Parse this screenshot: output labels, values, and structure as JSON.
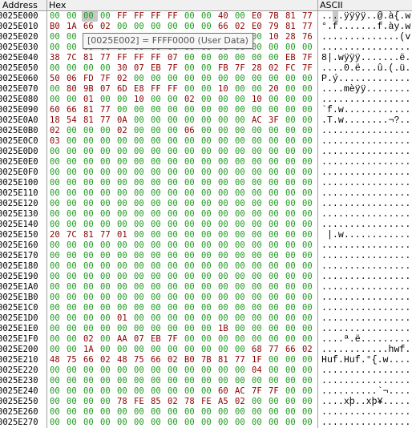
{
  "headers": {
    "address": "Address",
    "hex": "Hex",
    "ascii": "ASCII"
  },
  "tooltip": "[0025E002] = FFFF0000 (User Data)",
  "rows": [
    {
      "address": "0025E000",
      "bytes": [
        "00",
        "00",
        "00",
        "00",
        "FF",
        "FF",
        "FF",
        "FF",
        "00",
        "00",
        "40",
        "00",
        "E0",
        "7B",
        "81",
        "77"
      ],
      "ascii": "....ÿÿÿÿ..@.à{.w"
    },
    {
      "address": "0025E010",
      "bytes": [
        "B0",
        "1A",
        "66",
        "02",
        "00",
        "00",
        "00",
        "00",
        "00",
        "00",
        "66",
        "02",
        "E0",
        "79",
        "81",
        "77"
      ],
      "ascii": "°.f.......f.ày.w"
    },
    {
      "address": "0025E020",
      "bytes": [
        "00",
        "00",
        "00",
        "00",
        "00",
        "00",
        "00",
        "00",
        "00",
        "00",
        "00",
        "00",
        "00",
        "10",
        "28",
        "76"
      ],
      "ascii": "..............(v"
    },
    {
      "address": "0025E030",
      "bytes": [
        "00",
        "00",
        "00",
        "00",
        "00",
        "00",
        "00",
        "00",
        "00",
        "00",
        "00",
        "00",
        "00",
        "00",
        "00",
        "00"
      ],
      "ascii": "................"
    },
    {
      "address": "0025E040",
      "bytes": [
        "38",
        "7C",
        "81",
        "77",
        "FF",
        "FF",
        "FF",
        "07",
        "00",
        "00",
        "00",
        "00",
        "00",
        "00",
        "EB",
        "7F"
      ],
      "ascii": "8|.wÿÿÿ.......ë."
    },
    {
      "address": "0025E050",
      "bytes": [
        "00",
        "00",
        "00",
        "00",
        "30",
        "07",
        "EB",
        "7F",
        "00",
        "00",
        "FB",
        "7F",
        "28",
        "02",
        "FC",
        "7F"
      ],
      "ascii": "....0.ë...û.(.ü."
    },
    {
      "address": "0025E060",
      "bytes": [
        "50",
        "06",
        "FD",
        "7F",
        "02",
        "00",
        "00",
        "00",
        "00",
        "00",
        "00",
        "00",
        "00",
        "00",
        "00",
        "00"
      ],
      "ascii": "P.ý............."
    },
    {
      "address": "0025E070",
      "bytes": [
        "00",
        "80",
        "9B",
        "07",
        "6D",
        "E8",
        "FF",
        "FF",
        "00",
        "00",
        "10",
        "00",
        "00",
        "20",
        "00",
        "00"
      ],
      "ascii": "....mèÿÿ........"
    },
    {
      "address": "0025E080",
      "bytes": [
        "00",
        "00",
        "01",
        "00",
        "00",
        "10",
        "00",
        "00",
        "02",
        "00",
        "00",
        "00",
        "10",
        "00",
        "00",
        "00"
      ],
      "ascii": "................"
    },
    {
      "address": "0025E090",
      "bytes": [
        "60",
        "66",
        "81",
        "77",
        "00",
        "00",
        "00",
        "00",
        "00",
        "00",
        "00",
        "00",
        "00",
        "00",
        "00",
        "00"
      ],
      "ascii": "`f.w............"
    },
    {
      "address": "0025E0A0",
      "bytes": [
        "18",
        "54",
        "81",
        "77",
        "0A",
        "00",
        "00",
        "00",
        "00",
        "00",
        "00",
        "00",
        "AC",
        "3F",
        "00",
        "00"
      ],
      "ascii": ".T.w........¬?.."
    },
    {
      "address": "0025E0B0",
      "bytes": [
        "02",
        "00",
        "00",
        "00",
        "02",
        "00",
        "00",
        "00",
        "06",
        "00",
        "00",
        "00",
        "00",
        "00",
        "00",
        "00"
      ],
      "ascii": "................"
    },
    {
      "address": "0025E0C0",
      "bytes": [
        "03",
        "00",
        "00",
        "00",
        "00",
        "00",
        "00",
        "00",
        "00",
        "00",
        "00",
        "00",
        "00",
        "00",
        "00",
        "00"
      ],
      "ascii": "................"
    },
    {
      "address": "0025E0D0",
      "bytes": [
        "00",
        "00",
        "00",
        "00",
        "00",
        "00",
        "00",
        "00",
        "00",
        "00",
        "00",
        "00",
        "00",
        "00",
        "00",
        "00"
      ],
      "ascii": "................"
    },
    {
      "address": "0025E0E0",
      "bytes": [
        "00",
        "00",
        "00",
        "00",
        "00",
        "00",
        "00",
        "00",
        "00",
        "00",
        "00",
        "00",
        "00",
        "00",
        "00",
        "00"
      ],
      "ascii": "................"
    },
    {
      "address": "0025E0F0",
      "bytes": [
        "00",
        "00",
        "00",
        "00",
        "00",
        "00",
        "00",
        "00",
        "00",
        "00",
        "00",
        "00",
        "00",
        "00",
        "00",
        "00"
      ],
      "ascii": "................"
    },
    {
      "address": "0025E100",
      "bytes": [
        "00",
        "00",
        "00",
        "00",
        "00",
        "00",
        "00",
        "00",
        "00",
        "00",
        "00",
        "00",
        "00",
        "00",
        "00",
        "00"
      ],
      "ascii": "................"
    },
    {
      "address": "0025E110",
      "bytes": [
        "00",
        "00",
        "00",
        "00",
        "00",
        "00",
        "00",
        "00",
        "00",
        "00",
        "00",
        "00",
        "00",
        "00",
        "00",
        "00"
      ],
      "ascii": "................"
    },
    {
      "address": "0025E120",
      "bytes": [
        "00",
        "00",
        "00",
        "00",
        "00",
        "00",
        "00",
        "00",
        "00",
        "00",
        "00",
        "00",
        "00",
        "00",
        "00",
        "00"
      ],
      "ascii": "................"
    },
    {
      "address": "0025E130",
      "bytes": [
        "00",
        "00",
        "00",
        "00",
        "00",
        "00",
        "00",
        "00",
        "00",
        "00",
        "00",
        "00",
        "00",
        "00",
        "00",
        "00"
      ],
      "ascii": "................"
    },
    {
      "address": "0025E140",
      "bytes": [
        "00",
        "00",
        "00",
        "00",
        "00",
        "00",
        "00",
        "00",
        "00",
        "00",
        "00",
        "00",
        "00",
        "00",
        "00",
        "00"
      ],
      "ascii": "................"
    },
    {
      "address": "0025E150",
      "bytes": [
        "20",
        "7C",
        "81",
        "77",
        "01",
        "00",
        "00",
        "00",
        "00",
        "00",
        "00",
        "00",
        "00",
        "00",
        "00",
        "00"
      ],
      "ascii": " |.w............"
    },
    {
      "address": "0025E160",
      "bytes": [
        "00",
        "00",
        "00",
        "00",
        "00",
        "00",
        "00",
        "00",
        "00",
        "00",
        "00",
        "00",
        "00",
        "00",
        "00",
        "00"
      ],
      "ascii": "................"
    },
    {
      "address": "0025E170",
      "bytes": [
        "00",
        "00",
        "00",
        "00",
        "00",
        "00",
        "00",
        "00",
        "00",
        "00",
        "00",
        "00",
        "00",
        "00",
        "00",
        "00"
      ],
      "ascii": "................"
    },
    {
      "address": "0025E180",
      "bytes": [
        "00",
        "00",
        "00",
        "00",
        "00",
        "00",
        "00",
        "00",
        "00",
        "00",
        "00",
        "00",
        "00",
        "00",
        "00",
        "00"
      ],
      "ascii": "................"
    },
    {
      "address": "0025E190",
      "bytes": [
        "00",
        "00",
        "00",
        "00",
        "00",
        "00",
        "00",
        "00",
        "00",
        "00",
        "00",
        "00",
        "00",
        "00",
        "00",
        "00"
      ],
      "ascii": "................"
    },
    {
      "address": "0025E1A0",
      "bytes": [
        "00",
        "00",
        "00",
        "00",
        "00",
        "00",
        "00",
        "00",
        "00",
        "00",
        "00",
        "00",
        "00",
        "00",
        "00",
        "00"
      ],
      "ascii": "................"
    },
    {
      "address": "0025E1B0",
      "bytes": [
        "00",
        "00",
        "00",
        "00",
        "00",
        "00",
        "00",
        "00",
        "00",
        "00",
        "00",
        "00",
        "00",
        "00",
        "00",
        "00"
      ],
      "ascii": "................"
    },
    {
      "address": "0025E1C0",
      "bytes": [
        "00",
        "00",
        "00",
        "00",
        "00",
        "00",
        "00",
        "00",
        "00",
        "00",
        "00",
        "00",
        "00",
        "00",
        "00",
        "00"
      ],
      "ascii": "................"
    },
    {
      "address": "0025E1D0",
      "bytes": [
        "00",
        "00",
        "00",
        "00",
        "01",
        "00",
        "00",
        "00",
        "00",
        "00",
        "00",
        "00",
        "00",
        "00",
        "00",
        "00"
      ],
      "ascii": "................"
    },
    {
      "address": "0025E1E0",
      "bytes": [
        "00",
        "00",
        "00",
        "00",
        "00",
        "00",
        "00",
        "00",
        "00",
        "00",
        "1B",
        "00",
        "00",
        "00",
        "00",
        "00"
      ],
      "ascii": "................"
    },
    {
      "address": "0025E1F0",
      "bytes": [
        "00",
        "00",
        "02",
        "00",
        "AA",
        "07",
        "EB",
        "7F",
        "00",
        "00",
        "00",
        "00",
        "00",
        "00",
        "00",
        "00"
      ],
      "ascii": "....ª.ë........."
    },
    {
      "address": "0025E200",
      "bytes": [
        "00",
        "00",
        "1A",
        "00",
        "00",
        "00",
        "00",
        "00",
        "00",
        "00",
        "00",
        "00",
        "68",
        "77",
        "66",
        "02"
      ],
      "ascii": "............hwf."
    },
    {
      "address": "0025E210",
      "bytes": [
        "48",
        "75",
        "66",
        "02",
        "48",
        "75",
        "66",
        "02",
        "B0",
        "7B",
        "81",
        "77",
        "1F",
        "00",
        "00",
        "00"
      ],
      "ascii": "Huf.Huf.°{.w...."
    },
    {
      "address": "0025E220",
      "bytes": [
        "00",
        "00",
        "00",
        "00",
        "00",
        "00",
        "00",
        "00",
        "00",
        "00",
        "00",
        "00",
        "04",
        "00",
        "00",
        "00"
      ],
      "ascii": "................"
    },
    {
      "address": "0025E230",
      "bytes": [
        "00",
        "00",
        "00",
        "00",
        "00",
        "00",
        "00",
        "00",
        "00",
        "00",
        "00",
        "00",
        "00",
        "00",
        "00",
        "00"
      ],
      "ascii": "................"
    },
    {
      "address": "0025E240",
      "bytes": [
        "00",
        "00",
        "00",
        "00",
        "00",
        "00",
        "00",
        "00",
        "00",
        "00",
        "60",
        "AC",
        "7F",
        "7F",
        "00",
        "00"
      ],
      "ascii": "..........`¬...."
    },
    {
      "address": "0025E250",
      "bytes": [
        "00",
        "00",
        "00",
        "00",
        "78",
        "FE",
        "85",
        "02",
        "78",
        "FE",
        "A5",
        "02",
        "00",
        "00",
        "00",
        "00"
      ],
      "ascii": "....xþ..xþ¥....."
    },
    {
      "address": "0025E260",
      "bytes": [
        "00",
        "00",
        "00",
        "00",
        "00",
        "00",
        "00",
        "00",
        "00",
        "00",
        "00",
        "00",
        "00",
        "00",
        "00",
        "00"
      ],
      "ascii": "................"
    },
    {
      "address": "0025E270",
      "bytes": [
        "00",
        "00",
        "00",
        "00",
        "00",
        "00",
        "00",
        "00",
        "00",
        "00",
        "00",
        "00",
        "00",
        "00",
        "00",
        "00"
      ],
      "ascii": "................"
    }
  ]
}
